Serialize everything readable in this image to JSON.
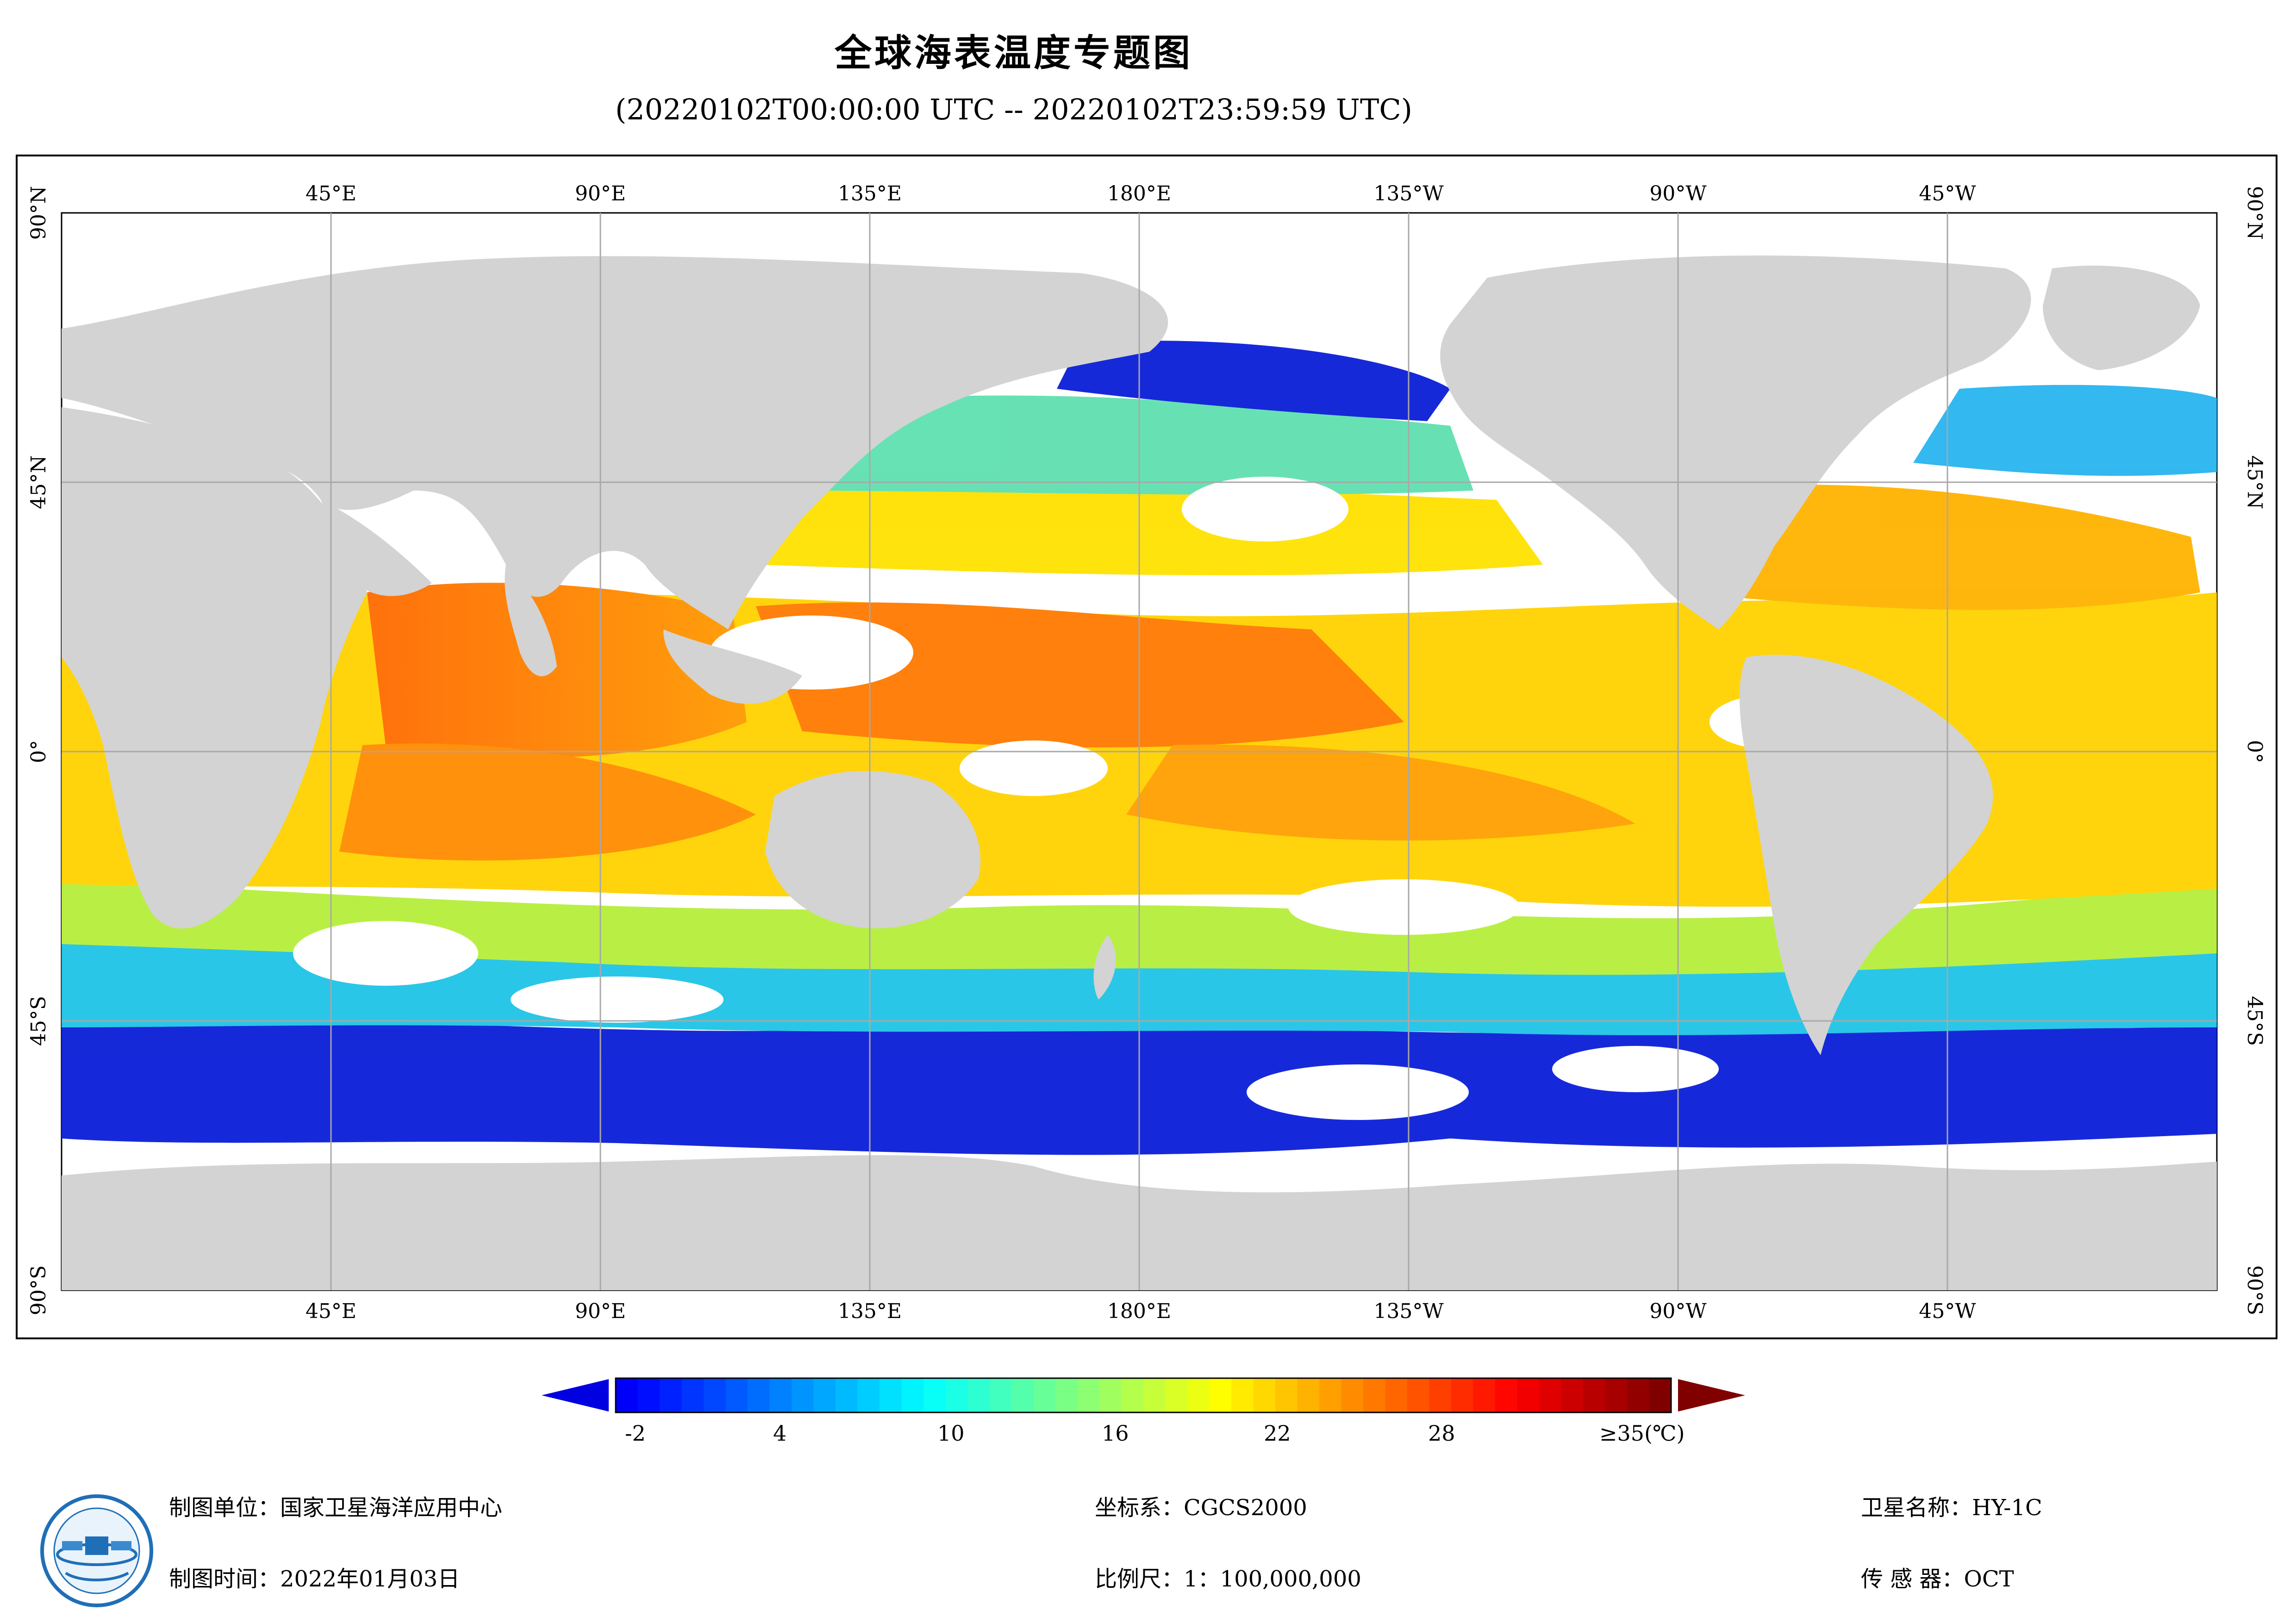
{
  "header": {
    "title": "全球海表温度专题图",
    "subtitle": "(20220102T00:00:00 UTC -- 20220102T23:59:59 UTC)"
  },
  "map": {
    "top_lon_labels": [
      "45°E",
      "90°E",
      "135°E",
      "180°E",
      "135°W",
      "90°W",
      "45°W"
    ],
    "bottom_lon_labels": [
      "45°E",
      "90°E",
      "135°E",
      "180°E",
      "135°W",
      "90°W",
      "45°W"
    ],
    "left_lat_labels": [
      "90°N",
      "45°N",
      "0°",
      "45°S",
      "90°S"
    ],
    "right_lat_labels": [
      "90°N",
      "45°N",
      "0°",
      "45°S",
      "90°S"
    ],
    "land_color": "#d3d3d3",
    "nodata_color": "#ffffff"
  },
  "colorbar": {
    "labels": [
      "-2",
      "4",
      "10",
      "16",
      "22",
      "28",
      "≥35(℃)"
    ],
    "min_value": -2,
    "max_value": 35,
    "under_color": "#0000e0",
    "over_color": "#800000"
  },
  "footer": {
    "producer": "制图单位：国家卫星海洋应用中心",
    "date": "制图时间：2022年01月03日",
    "crs": "坐标系：CGCS2000",
    "scale": "比例尺：1：100,000,000",
    "satellite": "卫星名称：HY-1C",
    "sensor": "传 感 器：OCT"
  }
}
